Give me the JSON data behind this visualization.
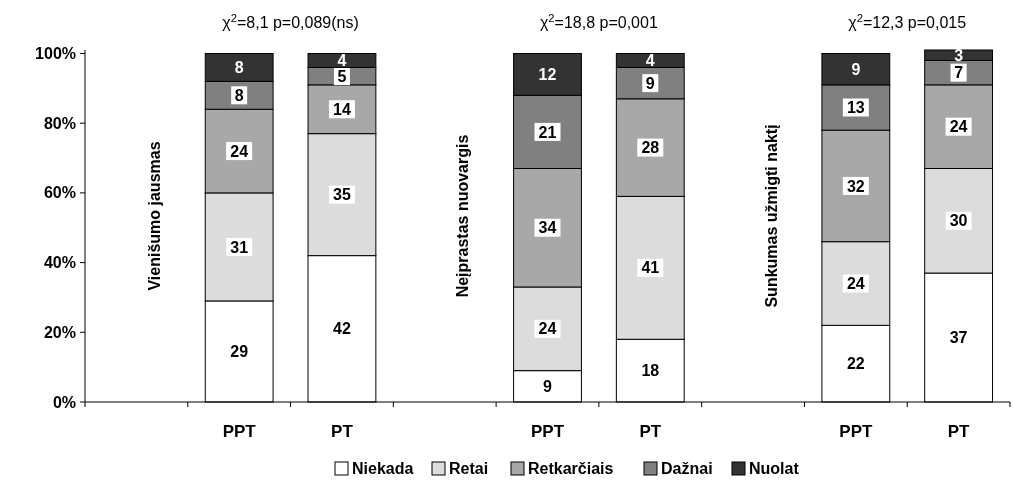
{
  "chart_data": {
    "type": "bar",
    "stacked": true,
    "categories": [
      null,
      "PPT",
      "PT",
      null,
      "PPT",
      "PT",
      null,
      "PPT",
      "PT"
    ],
    "series": [
      {
        "name": "Niekada",
        "color": "#ffffff",
        "values": [
          null,
          29,
          42,
          null,
          9,
          18,
          null,
          22,
          37
        ]
      },
      {
        "name": "Retai",
        "color": "#dcdcdc",
        "values": [
          null,
          31,
          35,
          null,
          24,
          41,
          null,
          24,
          30
        ]
      },
      {
        "name": "Retkarčiais",
        "color": "#a8a8a8",
        "values": [
          null,
          24,
          14,
          null,
          34,
          28,
          null,
          32,
          24
        ]
      },
      {
        "name": "Dažnai",
        "color": "#808080",
        "values": [
          null,
          8,
          5,
          null,
          21,
          9,
          null,
          13,
          7
        ]
      },
      {
        "name": "Nuolat",
        "color": "#333333",
        "values": [
          null,
          8,
          4,
          null,
          12,
          4,
          null,
          9,
          3
        ]
      }
    ],
    "ylim": [
      0,
      101
    ],
    "yticks": [
      {
        "value": 0,
        "label": "0%"
      },
      {
        "value": 20,
        "label": "20%"
      },
      {
        "value": 40,
        "label": "40%"
      },
      {
        "value": 60,
        "label": "60%"
      },
      {
        "value": 80,
        "label": "80%"
      },
      {
        "value": 100,
        "label": "100%"
      }
    ],
    "data_labels": true,
    "legend": "bottom",
    "grid": false,
    "annotations": [
      "Vienišumo jausmas",
      "Neįprastas nuovargis",
      "Sunkumas užmigti naktį",
      "χ$^{2}$=8,1 p=0,089(ns)",
      "χ$^{2}$=18,8 p=0,001",
      "χ$^{2}$=12,3 p=0,015"
    ]
  }
}
